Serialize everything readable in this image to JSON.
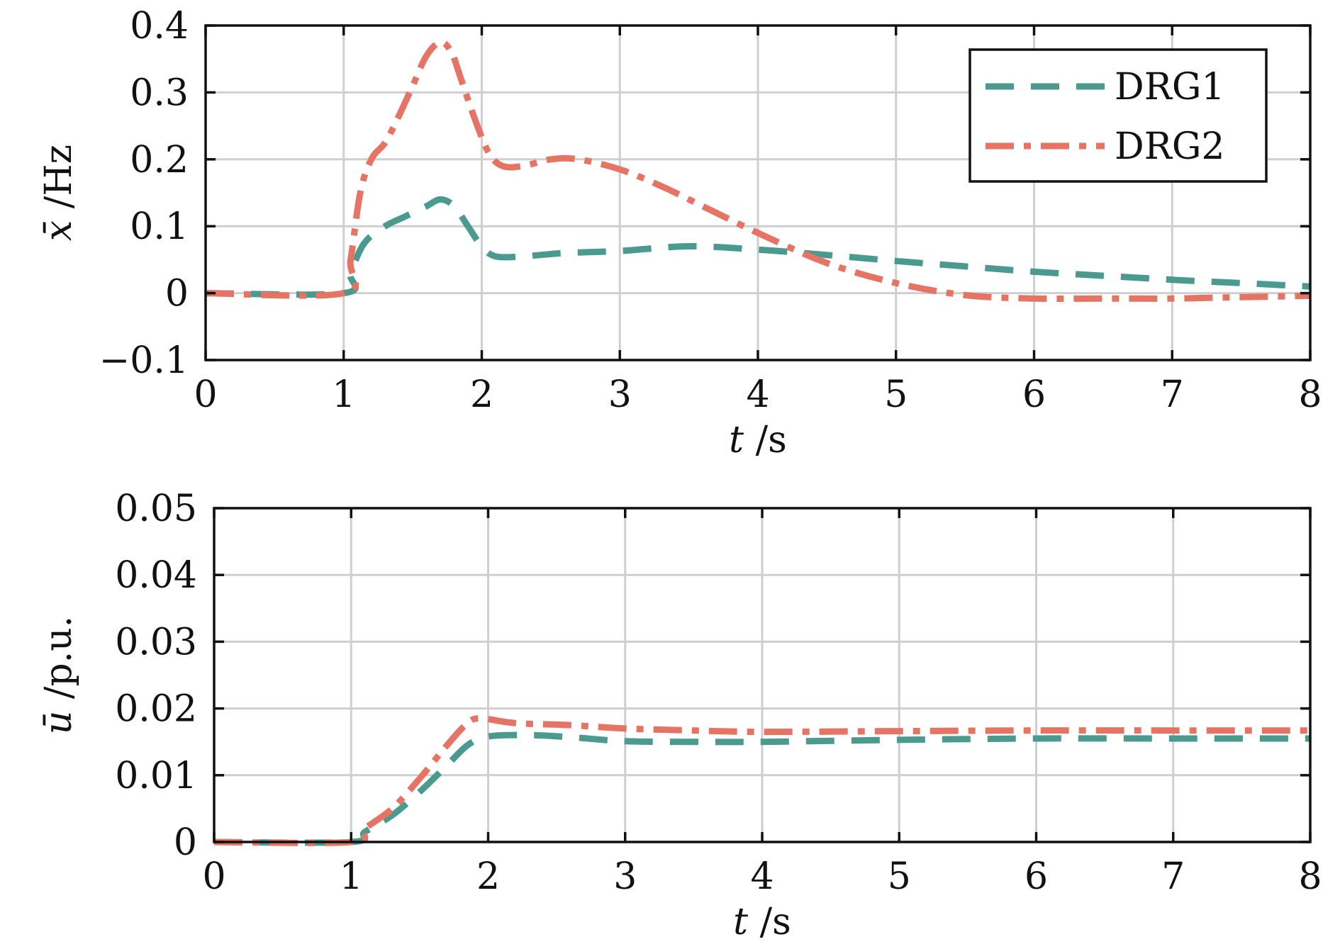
{
  "colors": {
    "DRG1": "#4a9a90",
    "DRG2": "#e57464"
  },
  "chart_data": [
    {
      "type": "line",
      "xlabel_var": "t",
      "xlabel_unit": " /s",
      "ylabel_var": "x̄",
      "ylabel_unit": " /Hz",
      "xlim": [
        0,
        8
      ],
      "ylim": [
        -0.1,
        0.4
      ],
      "xticks": [
        0,
        1,
        2,
        3,
        4,
        5,
        6,
        7,
        8
      ],
      "yticks": [
        -0.1,
        0,
        0.1,
        0.2,
        0.3,
        0.4
      ],
      "xtick_labels": [
        "0",
        "1",
        "2",
        "3",
        "4",
        "5",
        "6",
        "7",
        "8"
      ],
      "ytick_labels": [
        "−0.1",
        "0",
        "0.1",
        "0.2",
        "0.3",
        "0.4"
      ],
      "grid": true,
      "legend": {
        "placement": "top-right",
        "entries": [
          "DRG1",
          "DRG2"
        ]
      },
      "series": [
        {
          "name": "DRG1",
          "style": "dashed",
          "color": "#4a9a90",
          "x": [
            0,
            1.0,
            1.05,
            1.15,
            1.3,
            1.45,
            1.6,
            1.7,
            1.8,
            1.9,
            2.0,
            2.1,
            2.3,
            2.6,
            3.0,
            3.5,
            4.0,
            4.5,
            5.0,
            5.5,
            6.0,
            6.5,
            7.0,
            7.5,
            8.0
          ],
          "y": [
            0,
            0,
            0.03,
            0.075,
            0.1,
            0.115,
            0.13,
            0.14,
            0.13,
            0.1,
            0.07,
            0.055,
            0.055,
            0.06,
            0.063,
            0.07,
            0.065,
            0.057,
            0.048,
            0.04,
            0.032,
            0.026,
            0.02,
            0.015,
            0.01
          ]
        },
        {
          "name": "DRG2",
          "style": "dashdot",
          "color": "#e57464",
          "x": [
            0,
            1.0,
            1.05,
            1.12,
            1.2,
            1.3,
            1.4,
            1.5,
            1.6,
            1.7,
            1.78,
            1.85,
            1.95,
            2.05,
            2.15,
            2.3,
            2.5,
            2.7,
            3.0,
            3.3,
            3.6,
            4.0,
            4.5,
            5.0,
            5.5,
            6.0,
            6.5,
            7.0,
            7.5,
            8.0
          ],
          "y": [
            0,
            0,
            0.05,
            0.15,
            0.2,
            0.225,
            0.265,
            0.31,
            0.355,
            0.375,
            0.36,
            0.32,
            0.26,
            0.21,
            0.19,
            0.19,
            0.2,
            0.2,
            0.185,
            0.16,
            0.13,
            0.09,
            0.045,
            0.015,
            -0.003,
            -0.008,
            -0.008,
            -0.008,
            -0.006,
            -0.004
          ]
        }
      ]
    },
    {
      "type": "line",
      "xlabel_var": "t",
      "xlabel_unit": " /s",
      "ylabel_var": "ū",
      "ylabel_unit": " /p.u.",
      "xlim": [
        0,
        8
      ],
      "ylim": [
        0,
        0.05
      ],
      "xticks": [
        0,
        1,
        2,
        3,
        4,
        5,
        6,
        7,
        8
      ],
      "yticks": [
        0,
        0.01,
        0.02,
        0.03,
        0.04,
        0.05
      ],
      "xtick_labels": [
        "0",
        "1",
        "2",
        "3",
        "4",
        "5",
        "6",
        "7",
        "8"
      ],
      "ytick_labels": [
        "0",
        "0.01",
        "0.02",
        "0.03",
        "0.04",
        "0.05"
      ],
      "grid": true,
      "series": [
        {
          "name": "DRG1",
          "style": "dashed",
          "color": "#4a9a90",
          "x": [
            0,
            1.0,
            1.1,
            1.3,
            1.5,
            1.7,
            1.85,
            2.0,
            2.3,
            2.6,
            3.0,
            3.5,
            4.0,
            5.0,
            6.0,
            7.0,
            8.0
          ],
          "y": [
            0,
            0,
            0.0015,
            0.004,
            0.0075,
            0.0115,
            0.0145,
            0.0158,
            0.016,
            0.0157,
            0.0151,
            0.015,
            0.015,
            0.0153,
            0.0155,
            0.0155,
            0.0155
          ]
        },
        {
          "name": "DRG2",
          "style": "dashdot",
          "color": "#e57464",
          "x": [
            0,
            1.0,
            1.1,
            1.3,
            1.5,
            1.7,
            1.85,
            1.95,
            2.2,
            2.6,
            3.0,
            3.5,
            4.0,
            5.0,
            6.0,
            7.0,
            8.0
          ],
          "y": [
            0,
            0,
            0.002,
            0.005,
            0.0095,
            0.0145,
            0.0178,
            0.0185,
            0.0178,
            0.0175,
            0.017,
            0.0167,
            0.0165,
            0.0166,
            0.0167,
            0.0167,
            0.0167
          ]
        }
      ]
    }
  ]
}
